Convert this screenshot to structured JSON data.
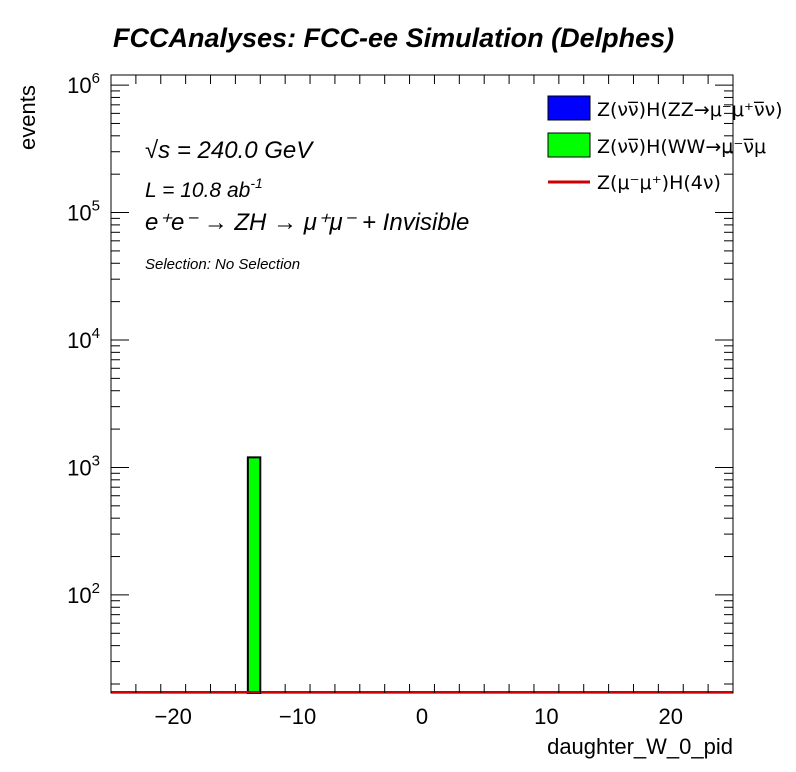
{
  "chart_data": {
    "type": "bar",
    "title": "FCCAnalyses: FCC-ee Simulation (Delphes)",
    "xlabel": "daughter_W_0_pid",
    "ylabel": "events",
    "xlim": [
      -25,
      25
    ],
    "ylim": [
      17,
      1200000
    ],
    "yscale": "log",
    "grid": false,
    "legend_position": "top-right",
    "x_ticks": [
      {
        "value": -20,
        "label": "−20"
      },
      {
        "value": -10,
        "label": "−10"
      },
      {
        "value": 0,
        "label": "0"
      },
      {
        "value": 10,
        "label": "10"
      },
      {
        "value": 20,
        "label": "20"
      }
    ],
    "y_ticks": [
      {
        "value": 100,
        "base": "10",
        "exp": "2"
      },
      {
        "value": 1000,
        "base": "10",
        "exp": "3"
      },
      {
        "value": 10000,
        "base": "10",
        "exp": "4"
      },
      {
        "value": 100000,
        "base": "10",
        "exp": "5"
      },
      {
        "value": 1000000,
        "base": "10",
        "exp": "6"
      }
    ],
    "bins": [
      {
        "x_low": -14,
        "x_high": -13,
        "value": 1200,
        "series": 1
      }
    ],
    "series": [
      {
        "name": "Z(νν̅)H(ZZ→μ⁻μ⁺ν̅ν)",
        "color": "#0000ff",
        "kind": "fill"
      },
      {
        "name": "Z(νν̅)H(WW→μ⁻ν̅μ",
        "color": "#00ff00",
        "kind": "fill"
      },
      {
        "name": "Z(μ⁻μ⁺)H(4ν)",
        "color": "#cc0000",
        "kind": "line"
      }
    ],
    "annotations": {
      "sqrt_s": "√s = 240.0 GeV",
      "lumi_main": "L = 10.8 ab",
      "lumi_exp": "-1",
      "process": "e⁺e⁻ → ZH → μ⁺μ⁻ + Invisible",
      "selection": "Selection: No Selection"
    }
  }
}
